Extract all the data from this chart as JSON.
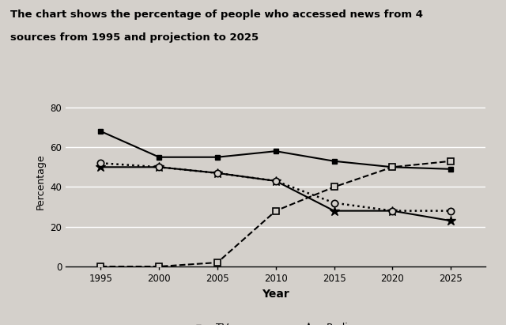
{
  "title_line1": "The chart shows the percentage of people who accessed news from 4",
  "title_line2": "sources from 1995 and projection to 2025",
  "xlabel": "Year",
  "ylabel": "Percentage",
  "years": [
    1995,
    2000,
    2005,
    2010,
    2015,
    2020,
    2025
  ],
  "TV": [
    68,
    55,
    55,
    58,
    53,
    50,
    49
  ],
  "Radio": [
    50,
    50,
    47,
    43,
    28,
    28,
    23
  ],
  "Newspaper": [
    52,
    50,
    47,
    43,
    32,
    28,
    28
  ],
  "Internet": [
    0,
    0,
    2,
    28,
    40,
    50,
    53
  ],
  "ylim": [
    0,
    85
  ],
  "yticks": [
    0,
    20,
    40,
    60,
    80
  ],
  "bg_color": "#d4d0cb",
  "grid_color": "#b0aca6"
}
